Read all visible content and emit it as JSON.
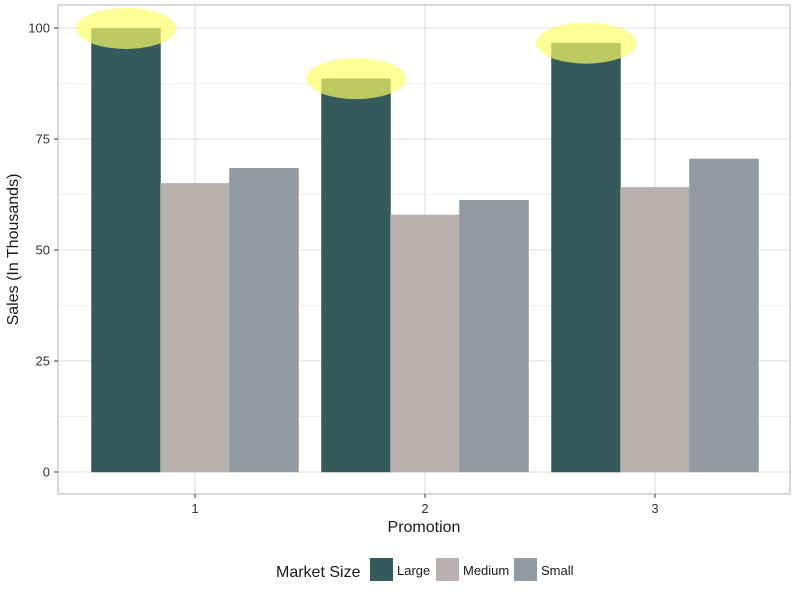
{
  "chart_data": {
    "type": "bar",
    "categories": [
      "1",
      "2",
      "3"
    ],
    "series": [
      {
        "name": "Large",
        "values": [
          99.9,
          88.6,
          96.6
        ],
        "color": "#345A5C"
      },
      {
        "name": "Medium",
        "values": [
          65.0,
          57.9,
          64.1
        ],
        "color": "#BBB0B0"
      },
      {
        "name": "Small",
        "values": [
          68.4,
          61.2,
          70.5
        ],
        "color": "#929BA2"
      }
    ],
    "xlabel": "Promotion",
    "ylabel": "Sales (In Thousands)",
    "ylim": [
      0,
      104
    ],
    "yticks": [
      0,
      25,
      50,
      75,
      100
    ],
    "grid": true,
    "legend": {
      "title": "Market Size",
      "position": "bottom"
    },
    "highlight": {
      "series": "Large",
      "color": "#FFFF66"
    }
  }
}
